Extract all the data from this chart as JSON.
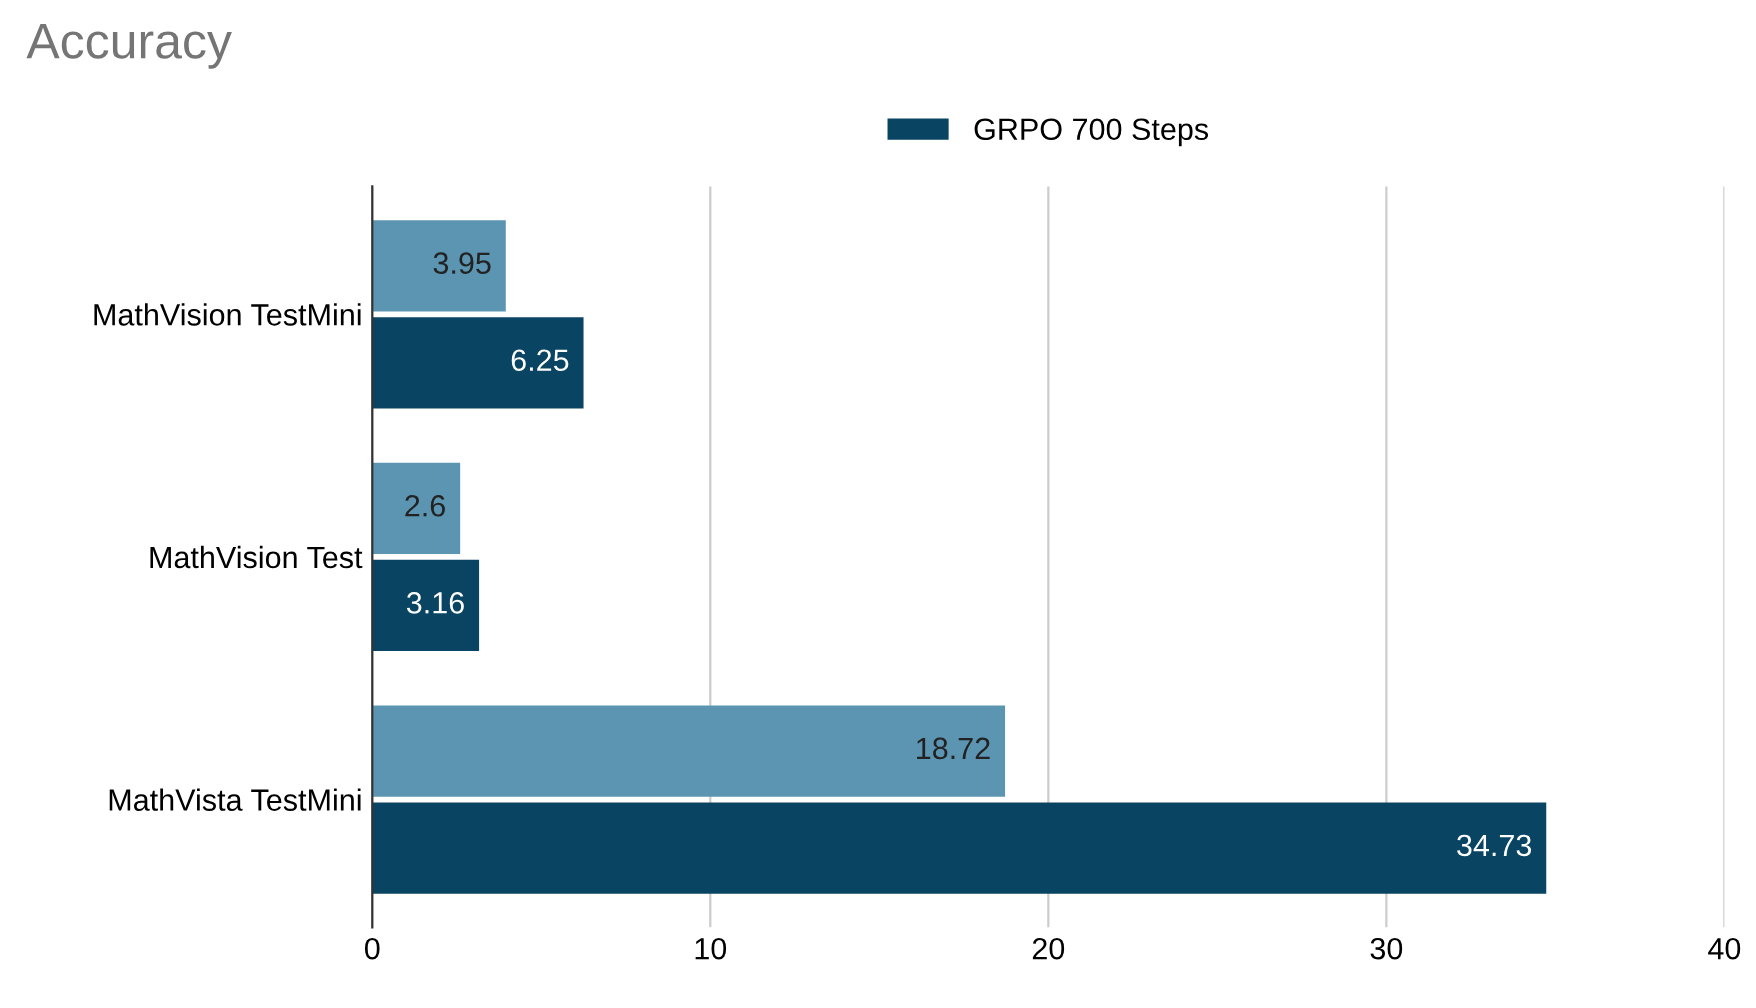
{
  "chart_data": {
    "type": "bar",
    "orientation": "horizontal",
    "title": "Accuracy",
    "categories": [
      "MathVision TestMini",
      "MathVision Test",
      "MathVista TestMini"
    ],
    "series": [
      {
        "color": "#5b95b2",
        "values": [
          3.95,
          2.6,
          18.72
        ]
      },
      {
        "name": "GRPO 700 Steps",
        "color": "#0a4463",
        "values": [
          6.25,
          3.16,
          34.73
        ]
      }
    ],
    "xlim": [
      0,
      40
    ],
    "xticks": [
      0,
      10,
      20,
      30,
      40
    ],
    "grid": "x",
    "legend": "top",
    "data_labels": true
  }
}
